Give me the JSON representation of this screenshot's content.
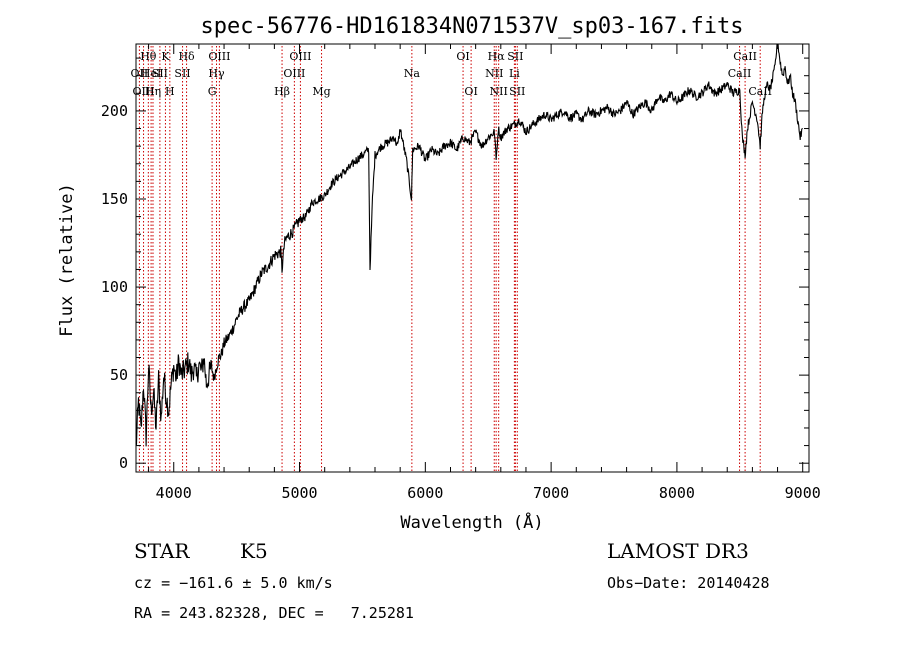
{
  "chart_data": {
    "type": "line",
    "title": "spec-56776-HD161834N071537V_sp03-167.fits",
    "xlabel": "Wavelength (Å)",
    "ylabel": "Flux (relative)",
    "xlim": [
      3700,
      9050
    ],
    "ylim": [
      -5,
      238
    ],
    "xticks": [
      4000,
      5000,
      6000,
      7000,
      8000,
      9000
    ],
    "yticks": [
      0,
      50,
      100,
      150,
      200
    ],
    "series": [
      {
        "name": "flux",
        "x": [
          3700,
          3720,
          3740,
          3760,
          3780,
          3800,
          3820,
          3840,
          3860,
          3880,
          3900,
          3920,
          3940,
          3960,
          3980,
          4000,
          4020,
          4040,
          4060,
          4080,
          4100,
          4120,
          4140,
          4160,
          4180,
          4200,
          4220,
          4240,
          4260,
          4280,
          4300,
          4320,
          4340,
          4360,
          4380,
          4400,
          4420,
          4440,
          4460,
          4480,
          4500,
          4550,
          4600,
          4650,
          4700,
          4750,
          4800,
          4850,
          4861,
          4880,
          4900,
          4950,
          5000,
          5050,
          5100,
          5150,
          5200,
          5250,
          5300,
          5350,
          5400,
          5450,
          5500,
          5550,
          5560,
          5580,
          5600,
          5650,
          5700,
          5750,
          5780,
          5800,
          5850,
          5890,
          5900,
          5950,
          6000,
          6050,
          6100,
          6150,
          6200,
          6250,
          6300,
          6350,
          6400,
          6450,
          6500,
          6550,
          6563,
          6580,
          6600,
          6650,
          6700,
          6750,
          6800,
          6850,
          6900,
          6950,
          7000,
          7050,
          7100,
          7150,
          7200,
          7250,
          7300,
          7350,
          7400,
          7450,
          7500,
          7550,
          7600,
          7650,
          7700,
          7750,
          7800,
          7850,
          7900,
          7950,
          8000,
          8050,
          8100,
          8150,
          8200,
          8250,
          8300,
          8350,
          8400,
          8450,
          8500,
          8520,
          8542,
          8560,
          8600,
          8640,
          8662,
          8680,
          8700,
          8720,
          8740,
          8760,
          8780,
          8800,
          8820,
          8840,
          8860,
          8880,
          8900,
          8920,
          8940,
          8960,
          8980,
          9000
        ],
        "values": [
          8,
          35,
          18,
          45,
          15,
          55,
          30,
          40,
          20,
          48,
          25,
          50,
          38,
          30,
          45,
          55,
          48,
          58,
          50,
          52,
          55,
          58,
          50,
          55,
          48,
          56,
          52,
          60,
          45,
          50,
          55,
          48,
          55,
          60,
          62,
          68,
          70,
          72,
          75,
          78,
          82,
          88,
          92,
          100,
          108,
          112,
          118,
          120,
          110,
          125,
          128,
          132,
          138,
          140,
          148,
          150,
          152,
          158,
          162,
          165,
          168,
          172,
          175,
          178,
          110,
          150,
          175,
          180,
          182,
          185,
          180,
          190,
          172,
          150,
          178,
          180,
          172,
          178,
          175,
          180,
          182,
          178,
          185,
          182,
          188,
          180,
          185,
          188,
          172,
          190,
          185,
          190,
          192,
          195,
          188,
          192,
          195,
          198,
          195,
          198,
          200,
          196,
          198,
          195,
          200,
          198,
          200,
          202,
          198,
          200,
          205,
          198,
          202,
          205,
          200,
          208,
          205,
          210,
          205,
          208,
          212,
          208,
          210,
          215,
          210,
          212,
          215,
          210,
          212,
          185,
          175,
          190,
          205,
          195,
          180,
          200,
          210,
          215,
          212,
          218,
          225,
          240,
          228,
          220,
          225,
          215,
          220,
          210,
          205,
          195,
          185,
          190
        ],
        "color": "#000000"
      }
    ],
    "lines": [
      {
        "name": "Hθ",
        "wl": 3798,
        "row": 1
      },
      {
        "name": "OII",
        "wl": 3727,
        "row": 2
      },
      {
        "name": "OIII",
        "wl": 3760,
        "row": 3
      },
      {
        "name": "HeI",
        "wl": 3820,
        "row": 2
      },
      {
        "name": "Hη",
        "wl": 3835,
        "row": 3
      },
      {
        "name": "K",
        "wl": 3934,
        "row": 1
      },
      {
        "name": "SII",
        "wl": 3890,
        "row": 2
      },
      {
        "name": "H",
        "wl": 3969,
        "row": 3
      },
      {
        "name": "Hδ",
        "wl": 4102,
        "row": 1
      },
      {
        "name": "SII",
        "wl": 4070,
        "row": 2
      },
      {
        "name": "OIII",
        "wl": 4363,
        "row": 1
      },
      {
        "name": "Hγ",
        "wl": 4340,
        "row": 2
      },
      {
        "name": "G",
        "wl": 4305,
        "row": 3
      },
      {
        "name": "Hβ",
        "wl": 4861,
        "row": 3
      },
      {
        "name": "OIII",
        "wl": 5007,
        "row": 1
      },
      {
        "name": "OIII",
        "wl": 4959,
        "row": 2
      },
      {
        "name": "Mg",
        "wl": 5175,
        "row": 3
      },
      {
        "name": "Na",
        "wl": 5893,
        "row": 2
      },
      {
        "name": "OI",
        "wl": 6300,
        "row": 1
      },
      {
        "name": "OI",
        "wl": 6364,
        "row": 3
      },
      {
        "name": "Hα",
        "wl": 6563,
        "row": 1
      },
      {
        "name": "NII",
        "wl": 6548,
        "row": 2
      },
      {
        "name": "NII",
        "wl": 6583,
        "row": 3
      },
      {
        "name": "SII",
        "wl": 6716,
        "row": 1
      },
      {
        "name": "Li",
        "wl": 6708,
        "row": 2
      },
      {
        "name": "SII",
        "wl": 6731,
        "row": 3
      },
      {
        "name": "CaII",
        "wl": 8542,
        "row": 1
      },
      {
        "name": "CaII",
        "wl": 8498,
        "row": 2
      },
      {
        "name": "CaII",
        "wl": 8662,
        "row": 3
      }
    ],
    "line_color": "#cc0000"
  },
  "info": {
    "object_class": "STAR",
    "subclass": "K5",
    "survey": "LAMOST DR3",
    "cz": "cz = −161.6 ± 5.0 km/s",
    "obs_date": "Obs−Date: 20140428",
    "coords": "RA = 243.82328, DEC =   7.25281"
  }
}
